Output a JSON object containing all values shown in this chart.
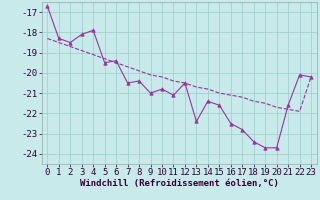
{
  "xlabel": "Windchill (Refroidissement éolien,°C)",
  "x": [
    0,
    1,
    2,
    3,
    4,
    5,
    6,
    7,
    8,
    9,
    10,
    11,
    12,
    13,
    14,
    15,
    16,
    17,
    18,
    19,
    20,
    21,
    22,
    23
  ],
  "y_main": [
    -16.7,
    -18.3,
    -18.5,
    -18.1,
    -17.9,
    -19.5,
    -19.4,
    -20.5,
    -20.4,
    -21.0,
    -20.8,
    -21.1,
    -20.5,
    -22.4,
    -21.4,
    -21.6,
    -22.5,
    -22.8,
    -23.4,
    -23.7,
    -23.7,
    -21.6,
    -20.1,
    -20.2
  ],
  "y_trend": [
    -18.3,
    -18.5,
    -18.7,
    -18.9,
    -19.1,
    -19.3,
    -19.5,
    -19.7,
    -19.9,
    -20.1,
    -20.2,
    -20.4,
    -20.5,
    -20.7,
    -20.8,
    -21.0,
    -21.1,
    -21.2,
    -21.4,
    -21.5,
    -21.7,
    -21.8,
    -21.9,
    -20.2
  ],
  "main_color": "#993399",
  "trend_color": "#993399",
  "bg_color": "#c8eaea",
  "grid_color": "#99cccc",
  "ylim": [
    -24.5,
    -16.5
  ],
  "yticks": [
    -17,
    -18,
    -19,
    -20,
    -21,
    -22,
    -23,
    -24
  ],
  "xticks": [
    0,
    1,
    2,
    3,
    4,
    5,
    6,
    7,
    8,
    9,
    10,
    11,
    12,
    13,
    14,
    15,
    16,
    17,
    18,
    19,
    20,
    21,
    22,
    23
  ],
  "tick_fontsize": 6.5,
  "xlabel_fontsize": 6.5
}
